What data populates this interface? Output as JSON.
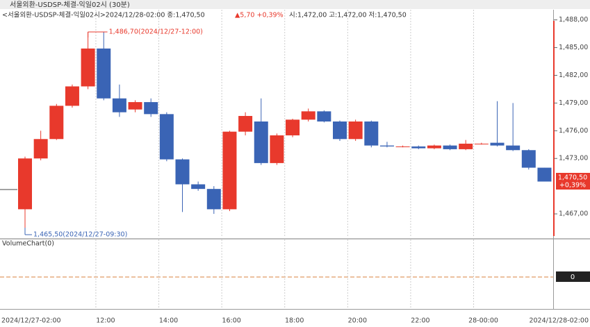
{
  "title_bar": "서울외환-USDSP-체결-익일02시 (30분)",
  "chart_data": {
    "type": "candlestick",
    "legend_text": "<서울외환-USDSP-체결-익일02시>2024/12/28-02:00 종:1,470,50",
    "change_text": "▲5,70 +0,39%",
    "ohl_text": "시:1,472,00 고:1,472,00 저:1,470,50",
    "categories": [
      null,
      null,
      null,
      null,
      null,
      "12:00",
      null,
      null,
      null,
      "14:00",
      null,
      null,
      null,
      "16:00",
      null,
      null,
      null,
      "18:00",
      null,
      null,
      null,
      "20:00",
      null,
      null,
      null,
      "22:00",
      null,
      null,
      null,
      "28-00:00",
      null,
      null,
      null,
      null
    ],
    "x_start_label": "2024/12/27-02:00",
    "x_end_label": "2024/12/28-02:00",
    "open": [
      1467.5,
      1473.0,
      1475.1,
      1478.7,
      1480.8,
      1484.9,
      1479.5,
      1478.3,
      1479.1,
      1477.8,
      1472.9,
      1470.2,
      1469.7,
      1467.5,
      1475.9,
      1477.0,
      1472.5,
      1475.5,
      1477.2,
      1478.1,
      1477.0,
      1475.1,
      1477.0,
      1474.4,
      1474.3,
      1474.3,
      1474.1,
      1474.4,
      1474.0,
      1474.6,
      1474.7,
      1474.4,
      1473.9,
      1472.0
    ],
    "high": [
      1473.2,
      1476.0,
      1478.9,
      1481.0,
      1486.7,
      1486.7,
      1481.0,
      1479.3,
      1479.5,
      1478.0,
      1473.0,
      1470.5,
      1470.0,
      1476.0,
      1478.0,
      1479.5,
      1475.7,
      1477.3,
      1478.4,
      1478.2,
      1477.1,
      1477.2,
      1477.1,
      1474.8,
      1474.4,
      1474.4,
      1474.5,
      1474.5,
      1475.0,
      1474.7,
      1479.2,
      1479.0,
      1474.0,
      1472.0
    ],
    "low": [
      1465.5,
      1472.8,
      1475.0,
      1478.5,
      1480.5,
      1479.3,
      1477.5,
      1478.0,
      1477.5,
      1472.7,
      1467.2,
      1469.5,
      1467.0,
      1467.3,
      1475.5,
      1472.3,
      1472.3,
      1475.3,
      1477.0,
      1476.9,
      1474.9,
      1474.9,
      1474.2,
      1474.2,
      1474.2,
      1474.0,
      1474.0,
      1473.9,
      1473.9,
      1474.5,
      1474.3,
      1473.8,
      1471.8,
      1470.5
    ],
    "close": [
      1473.0,
      1475.1,
      1478.7,
      1480.8,
      1484.9,
      1479.5,
      1478.0,
      1479.1,
      1477.8,
      1472.9,
      1470.2,
      1469.7,
      1467.5,
      1475.9,
      1477.6,
      1472.5,
      1475.5,
      1477.2,
      1478.1,
      1477.0,
      1475.1,
      1477.0,
      1474.4,
      1474.3,
      1474.3,
      1474.1,
      1474.4,
      1474.0,
      1474.6,
      1474.6,
      1474.4,
      1473.9,
      1472.0,
      1470.5
    ],
    "up_color": "#e8392c",
    "down_color": "#3a64b5",
    "ylim": [
      1464.6,
      1488.8
    ],
    "yticks": [
      {
        "value": 1488,
        "label": "1,488,00"
      },
      {
        "value": 1485,
        "label": "1,485,00"
      },
      {
        "value": 1482,
        "label": "1,482,00"
      },
      {
        "value": 1479,
        "label": "1,479,00"
      },
      {
        "value": 1476,
        "label": "1,476,00"
      },
      {
        "value": 1473,
        "label": "1,473,00"
      },
      {
        "value": 1467,
        "label": "1,467,00"
      }
    ],
    "high_annotation": "1,486,70(2024/12/27-12:00)",
    "low_annotation": "1,465,50(2024/12/27-09:30)",
    "last_price_label": "1,470,50",
    "last_change_label": "+0,39%",
    "grid": true
  },
  "volume_panel": {
    "title": "VolumeChart(0)",
    "value_label": "0"
  }
}
